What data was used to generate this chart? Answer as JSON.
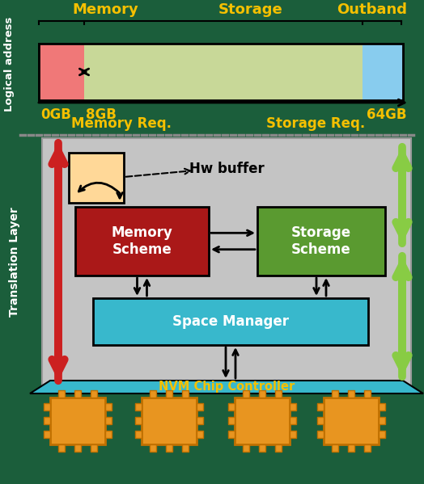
{
  "bg_color": "#1b5e3b",
  "title_color": "#f5c000",
  "white": "#ffffff",
  "black": "#000000",
  "memory_label": "Memory",
  "storage_label": "Storage",
  "outband_label": "Outband",
  "logical_address_label": "Logical address",
  "addr_0gb": "0GB",
  "addr_8gb": "8GB",
  "addr_64gb": "64GB",
  "mem_req_label": "Memory Req.",
  "stor_req_label": "Storage Req.",
  "translation_layer_label": "Translation Layer",
  "hw_buffer_label": "Hw buffer",
  "memory_scheme_label": "Memory\nScheme",
  "storage_scheme_label": "Storage\nScheme",
  "space_manager_label": "Space Manager",
  "nvm_chip_label": "NVM Chip Controller",
  "pink_color": "#f07878",
  "lightgreen_color": "#c8d898",
  "lightblue_color": "#88ccee",
  "red_arrow_color": "#cc2020",
  "green_arrow_color": "#88cc44",
  "orange_color": "#e89520",
  "peach_color": "#ffd898",
  "cyan_color": "#38b8cc",
  "gray_box_color": "#c4c4c4",
  "memory_scheme_color": "#aa1818",
  "storage_scheme_color": "#5a9a30"
}
